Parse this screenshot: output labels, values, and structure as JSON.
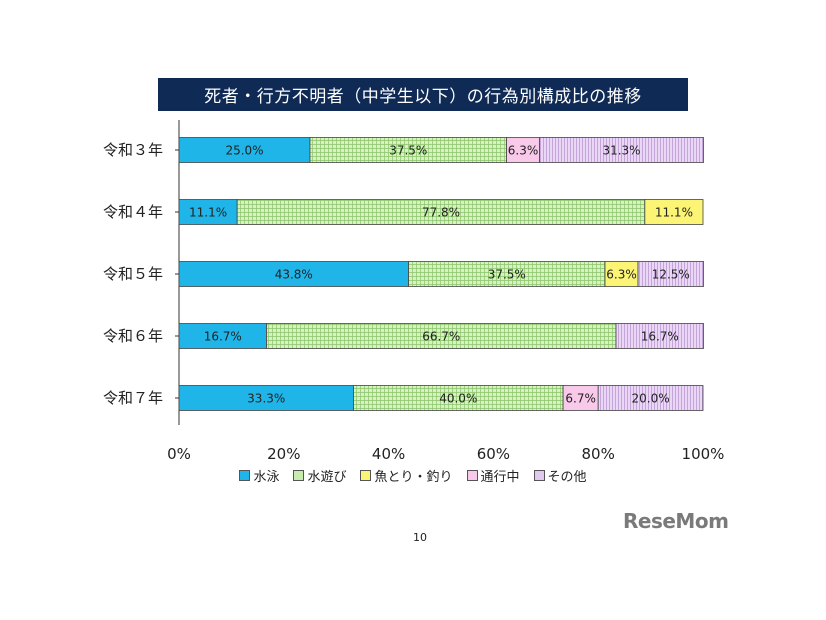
{
  "page_number": "10",
  "logo": "ReseMom",
  "chart_data": {
    "type": "bar",
    "orientation": "horizontal",
    "stacked": true,
    "percent": true,
    "title": "死者・行方不明者（中学生以下）の行為別構成比の推移",
    "categories": [
      "令和３年",
      "令和４年",
      "令和５年",
      "令和６年",
      "令和７年"
    ],
    "xlim": [
      0,
      100
    ],
    "x_ticks": [
      "0%",
      "20%",
      "40%",
      "60%",
      "80%",
      "100%"
    ],
    "legend_position": "bottom",
    "series": [
      {
        "name": "水泳",
        "color": "#1fb5e8",
        "pattern": "solid",
        "values": [
          25.0,
          11.1,
          43.8,
          16.7,
          33.3
        ],
        "labels": [
          "25.0%",
          "11.1%",
          "43.8%",
          "16.7%",
          "33.3%"
        ]
      },
      {
        "name": "水遊び",
        "color": "#c8ecae",
        "pattern": "grid",
        "values": [
          37.5,
          77.8,
          37.5,
          66.7,
          40.0
        ],
        "labels": [
          "37.5%",
          "77.8%",
          "37.5%",
          "66.7%",
          "40.0%"
        ]
      },
      {
        "name": "魚とり・釣り",
        "color": "#fbf475",
        "pattern": "solid",
        "values": [
          0,
          11.1,
          6.3,
          0,
          0
        ],
        "labels": [
          "",
          "11.1%",
          "6.3%",
          "",
          ""
        ]
      },
      {
        "name": "通行中",
        "color": "#f9c9ea",
        "pattern": "solid",
        "values": [
          6.3,
          0,
          0,
          0,
          6.7
        ],
        "labels": [
          "6.3%",
          "",
          "",
          "",
          "6.7%"
        ]
      },
      {
        "name": "その他",
        "color": "#e2c9f0",
        "pattern": "vlines",
        "values": [
          31.3,
          0,
          12.5,
          16.7,
          20.0
        ],
        "labels": [
          "31.3%",
          "",
          "12.5%",
          "16.7%",
          "20.0%"
        ]
      }
    ]
  }
}
